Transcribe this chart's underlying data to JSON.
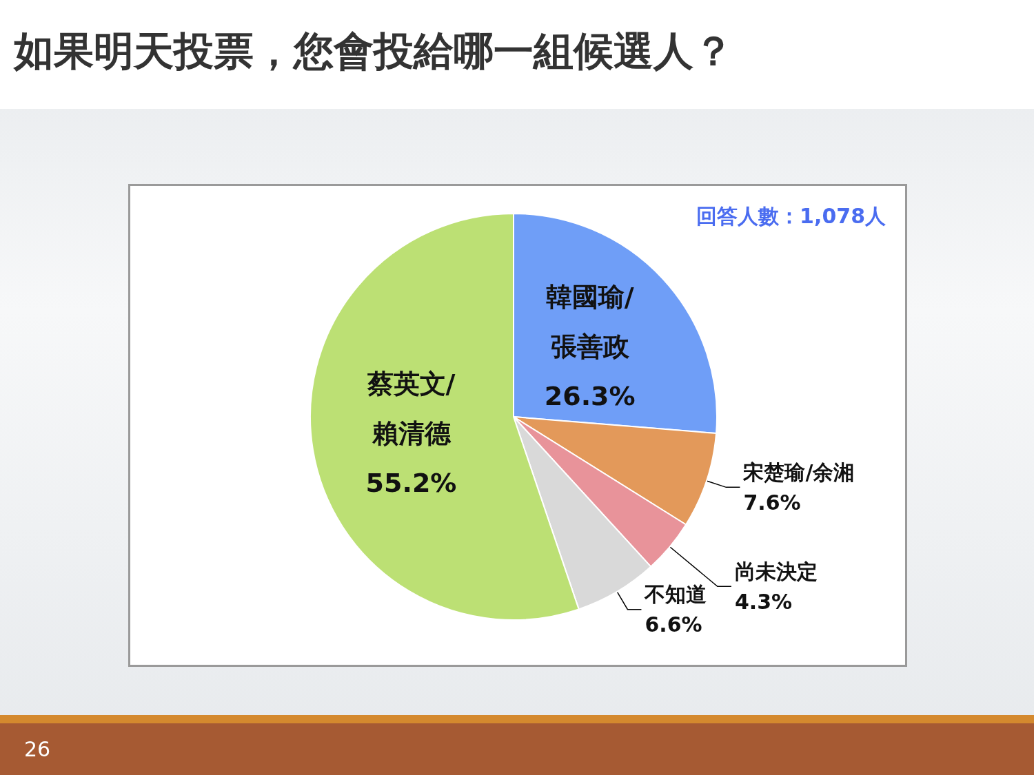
{
  "chart_data": {
    "type": "pie",
    "title": "如果明天投票，您會投給哪一組候選人？",
    "categories": [
      "韓國瑜/張善政",
      "宋楚瑜/余湘",
      "尚未決定",
      "不知道",
      "蔡英文/賴清德"
    ],
    "values": [
      26.3,
      7.6,
      4.3,
      6.6,
      55.2
    ],
    "value_labels": [
      "26.3%",
      "7.6%",
      "4.3%",
      "6.6%",
      "55.2%"
    ],
    "colors": [
      "#6f9ef7",
      "#e3995a",
      "#e8939a",
      "#d9d9d9",
      "#bce074"
    ],
    "annotations": [
      "回答人數：1,078人",
      "26"
    ]
  }
}
